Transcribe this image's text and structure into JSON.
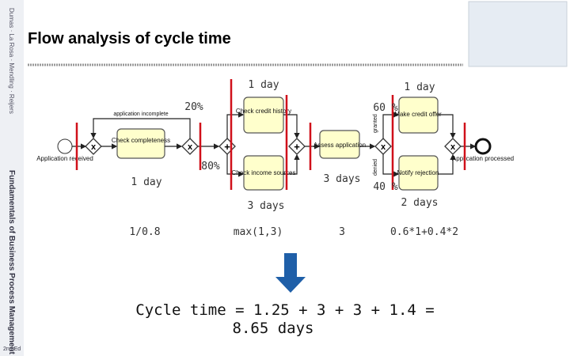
{
  "slide": {
    "title": "Flow analysis of cycle time",
    "sidebar": {
      "book": "Fundamentals of Business Process Management",
      "authors": "Dumas · La Rosa · Mendling · Reijers",
      "edition": "2nd Ed"
    },
    "diagram": {
      "nodes": {
        "start": "Application received",
        "check_completeness": "Check completeness",
        "check_credit": "Check credit history",
        "check_income": "Check income sources",
        "assess": "Assess application",
        "offer": "Make credit offer",
        "reject": "Notify rejection",
        "end": "Application processed"
      },
      "edges": {
        "loop": "application incomplete",
        "granted": "granted",
        "denied": "denied"
      }
    },
    "annotations": {
      "credit_time": "1 day",
      "offer_time": "1 day",
      "loop_prob": "20%",
      "granted_prob": "60 %",
      "continue_prob": "80%",
      "completeness_time": "1 day",
      "assess_time": "3 days",
      "denied_prob": "40 %",
      "income_time": "3 days",
      "decision_time": "2 days"
    },
    "formulas": {
      "loop": "1/0.8",
      "parallel": "max(1,3)",
      "assess": "3",
      "decision": "0.6*1+0.4*2"
    },
    "result": {
      "line1": "Cycle time = 1.25 + 3 + 3 + 1.4  =",
      "line2": "8.65 days"
    }
  }
}
